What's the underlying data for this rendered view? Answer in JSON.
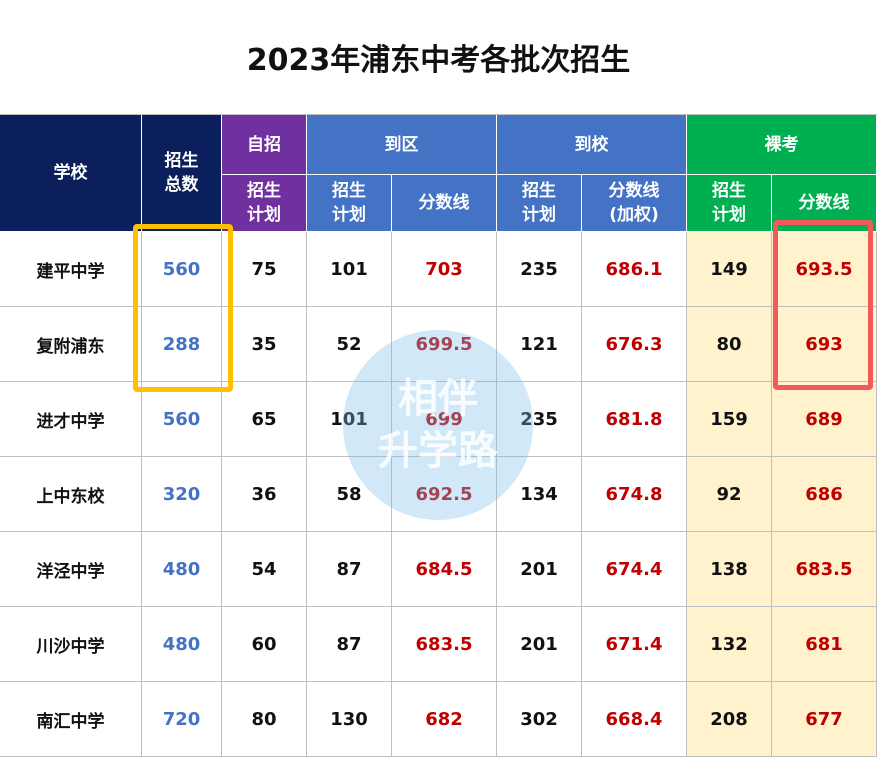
{
  "title": "2023年浦东中考各批次招生",
  "header": {
    "school": "学校",
    "total": [
      "招生",
      "总数"
    ],
    "groups": [
      {
        "name": "自招",
        "columns": [
          [
            "招生",
            "计划"
          ]
        ]
      },
      {
        "name": "到区",
        "columns": [
          [
            "招生",
            "计划"
          ],
          [
            "分数线"
          ]
        ]
      },
      {
        "name": "到校",
        "columns": [
          [
            "招生",
            "计划"
          ],
          [
            "分数线",
            "(加权)"
          ]
        ]
      },
      {
        "name": "裸考",
        "columns": [
          [
            "招生",
            "计划"
          ],
          [
            "分数线"
          ]
        ]
      }
    ]
  },
  "rows": [
    [
      "建平中学",
      560,
      75,
      101,
      703,
      235,
      686.1,
      149,
      693.5
    ],
    [
      "复附浦东",
      288,
      35,
      52,
      699.5,
      121,
      676.3,
      80,
      693
    ],
    [
      "进才中学",
      560,
      65,
      101,
      699,
      235,
      681.8,
      159,
      689
    ],
    [
      "上中东校",
      320,
      36,
      58,
      692.5,
      134,
      674.8,
      92,
      686
    ],
    [
      "洋泾中学",
      480,
      54,
      87,
      684.5,
      201,
      674.4,
      138,
      683.5
    ],
    [
      "川沙中学",
      480,
      60,
      87,
      683.5,
      201,
      671.4,
      132,
      681
    ],
    [
      "南汇中学",
      720,
      80,
      130,
      682,
      302,
      668.4,
      208,
      677
    ]
  ],
  "watermark": [
    "相伴",
    "升学路"
  ]
}
